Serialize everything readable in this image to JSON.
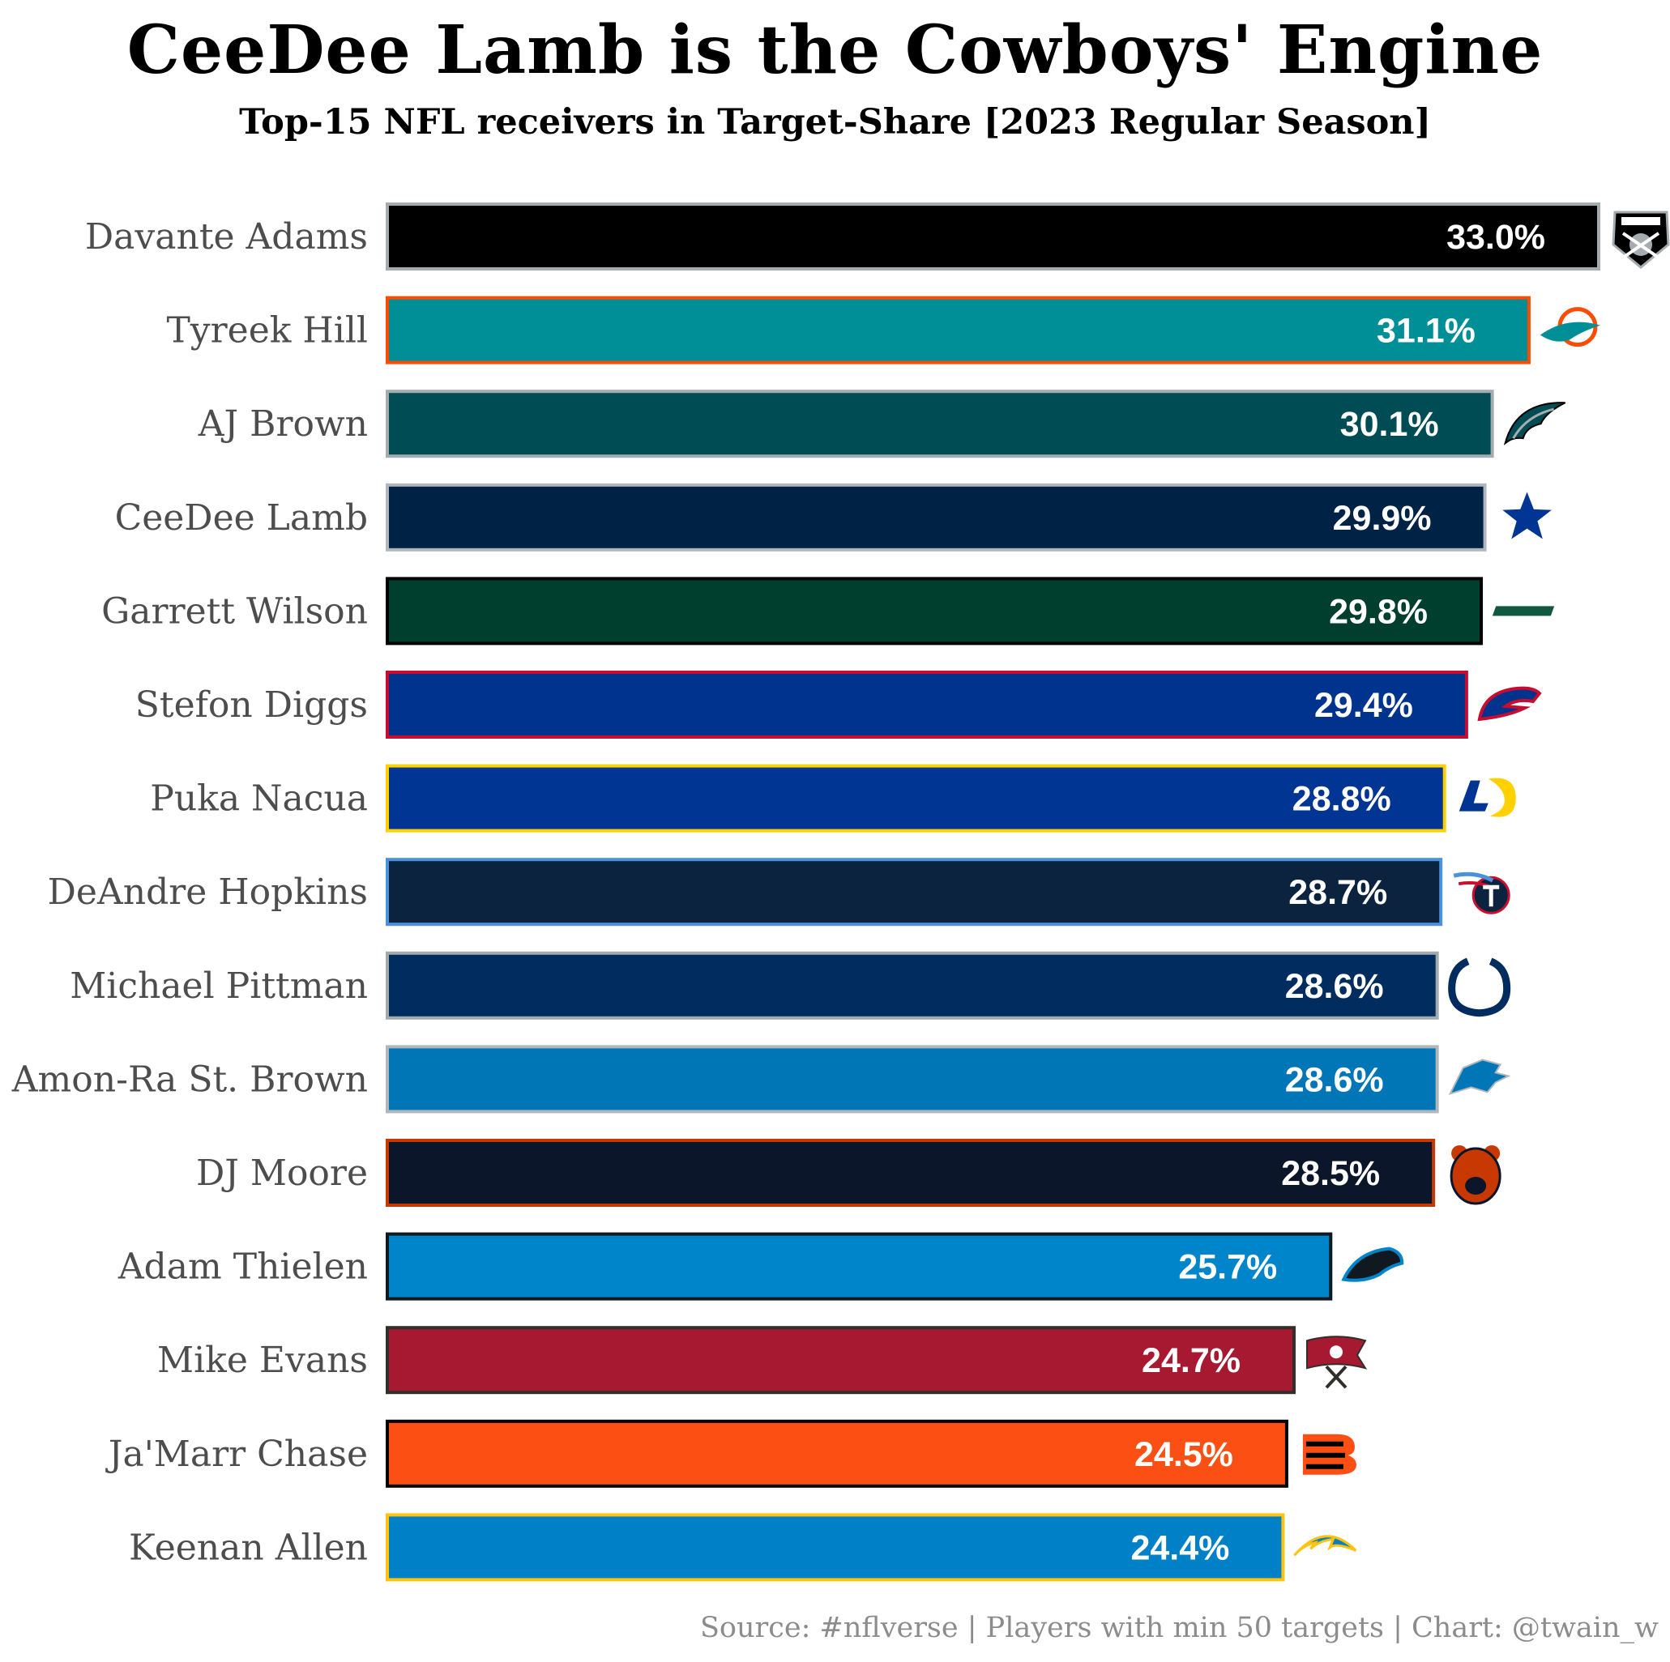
{
  "title": "CeeDee Lamb is the Cowboys' Engine",
  "subtitle": "Top-15 NFL receivers in Target-Share [2023 Regular Season]",
  "caption": "Source: #nflverse | Players with min 50 targets | Chart: @twain_w",
  "chart_data": {
    "type": "bar",
    "orientation": "horizontal",
    "title": "CeeDee Lamb is the Cowboys' Engine",
    "subtitle": "Top-15 NFL receivers in Target-Share [2023 Regular Season]",
    "xlabel": "",
    "ylabel": "",
    "xlim": [
      0,
      33.0
    ],
    "grid": false,
    "legend": "none",
    "value_format": "{v}%",
    "categories": [
      "Davante Adams",
      "Tyreek Hill",
      "AJ Brown",
      "CeeDee Lamb",
      "Garrett Wilson",
      "Stefon Diggs",
      "Puka Nacua",
      "DeAndre Hopkins",
      "Michael Pittman",
      "Amon-Ra St. Brown",
      "DJ Moore",
      "Adam Thielen",
      "Mike Evans",
      "Ja'Marr Chase",
      "Keenan Allen"
    ],
    "values": [
      33.0,
      31.1,
      30.1,
      29.9,
      29.8,
      29.4,
      28.8,
      28.7,
      28.6,
      28.6,
      28.5,
      25.7,
      24.7,
      24.5,
      24.4
    ],
    "value_labels": [
      "33.0%",
      "31.1%",
      "30.1%",
      "29.9%",
      "29.8%",
      "29.4%",
      "28.8%",
      "28.7%",
      "28.6%",
      "28.6%",
      "28.5%",
      "25.7%",
      "24.7%",
      "24.5%",
      "24.4%"
    ],
    "teams": [
      "LV",
      "MIA",
      "PHI",
      "DAL",
      "NYJ",
      "BUF",
      "LA",
      "TEN",
      "IND",
      "DET",
      "CHI",
      "CAR",
      "TB",
      "CIN",
      "LAC"
    ],
    "icons": [
      "raiders-logo-icon",
      "dolphins-logo-icon",
      "eagles-logo-icon",
      "cowboys-star-icon",
      "jets-logo-icon",
      "bills-logo-icon",
      "rams-logo-icon",
      "titans-logo-icon",
      "colts-horseshoe-icon",
      "lions-logo-icon",
      "bears-logo-icon",
      "panthers-logo-icon",
      "buccaneers-flag-icon",
      "bengals-logo-icon",
      "chargers-bolt-icon"
    ],
    "fill_colors": [
      "#000000",
      "#008E97",
      "#004C54",
      "#002244",
      "#003F2D",
      "#00338D",
      "#003594",
      "#0C2340",
      "#002C5F",
      "#0076B6",
      "#0B162A",
      "#0085CA",
      "#A71930",
      "#FB4F14",
      "#0080C6"
    ],
    "border_colors": [
      "#A5ACAF",
      "#FC4C02",
      "#A5ACAF",
      "#B0B7BC",
      "#000000",
      "#C60C30",
      "#FFD100",
      "#4B92DB",
      "#A2AAAD",
      "#B0B7BC",
      "#C83803",
      "#101820",
      "#322F2B",
      "#000000",
      "#FFC20E"
    ]
  }
}
